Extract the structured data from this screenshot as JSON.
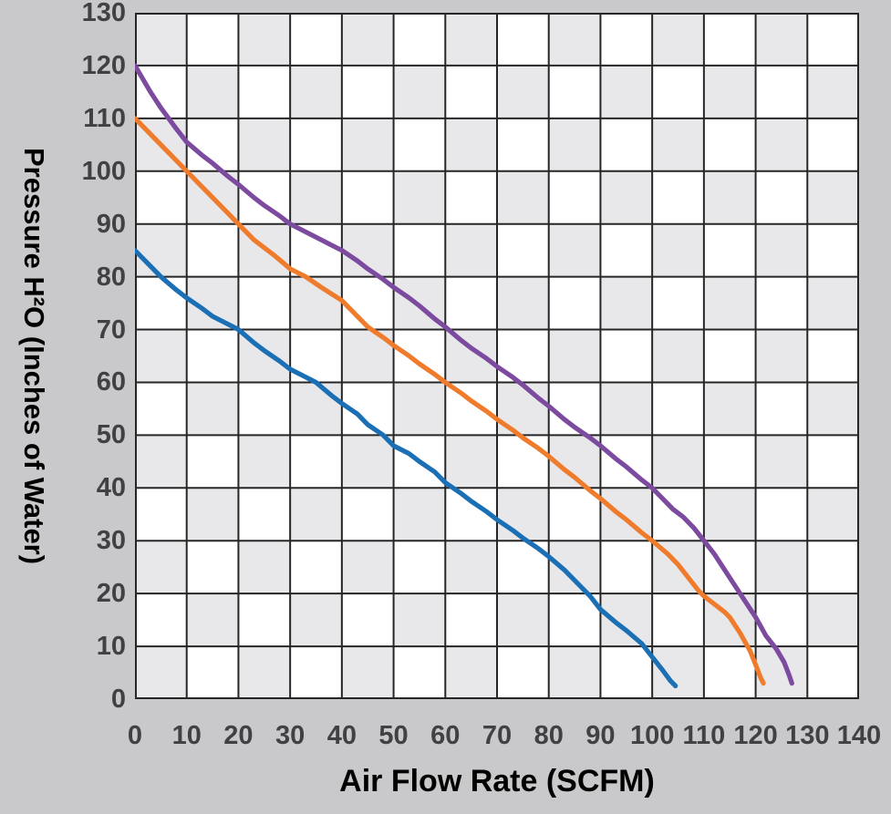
{
  "chart_data": {
    "type": "line",
    "title": "",
    "xlabel": "Air Flow Rate (SCFM)",
    "ylabel": "Pressure H²O (Inches of Water)",
    "xlim": [
      0,
      140
    ],
    "ylim": [
      0,
      130
    ],
    "x_ticks": [
      0,
      10,
      20,
      30,
      40,
      50,
      60,
      70,
      80,
      90,
      100,
      110,
      120,
      130,
      140
    ],
    "y_ticks": [
      0,
      10,
      20,
      30,
      40,
      50,
      60,
      70,
      80,
      90,
      100,
      110,
      120,
      130
    ],
    "grid": "checkerboard",
    "legend": "none",
    "series": [
      {
        "name": "blue-curve",
        "color": "#1b6fb4",
        "points": [
          [
            0,
            85
          ],
          [
            3,
            82
          ],
          [
            5,
            80
          ],
          [
            8,
            77.5
          ],
          [
            10,
            76
          ],
          [
            13,
            74
          ],
          [
            15,
            72.5
          ],
          [
            18,
            71
          ],
          [
            20,
            70
          ],
          [
            23,
            67.5
          ],
          [
            25,
            66
          ],
          [
            28,
            64
          ],
          [
            30,
            62.5
          ],
          [
            33,
            61
          ],
          [
            35,
            60
          ],
          [
            38,
            57.5
          ],
          [
            40,
            56
          ],
          [
            43,
            54
          ],
          [
            45,
            52
          ],
          [
            48,
            50
          ],
          [
            50,
            48
          ],
          [
            53,
            46.5
          ],
          [
            55,
            45
          ],
          [
            58,
            43
          ],
          [
            60,
            41
          ],
          [
            63,
            39
          ],
          [
            65,
            37.5
          ],
          [
            68,
            35.5
          ],
          [
            70,
            34
          ],
          [
            73,
            32
          ],
          [
            75,
            30.5
          ],
          [
            78,
            28.5
          ],
          [
            80,
            27
          ],
          [
            83,
            24.5
          ],
          [
            85,
            22.5
          ],
          [
            88,
            19.5
          ],
          [
            90,
            17
          ],
          [
            93,
            14.5
          ],
          [
            95,
            13
          ],
          [
            98,
            10.5
          ],
          [
            100,
            8
          ],
          [
            102,
            5.5
          ],
          [
            103.5,
            3.5
          ],
          [
            104.5,
            2.5
          ]
        ]
      },
      {
        "name": "orange-curve",
        "color": "#ef7b2c",
        "points": [
          [
            0,
            110
          ],
          [
            4,
            106
          ],
          [
            8,
            102
          ],
          [
            10,
            100
          ],
          [
            14,
            96
          ],
          [
            18,
            92
          ],
          [
            20,
            90
          ],
          [
            23,
            87
          ],
          [
            25,
            85.5
          ],
          [
            27,
            84
          ],
          [
            30,
            81.5
          ],
          [
            33,
            80
          ],
          [
            36,
            78
          ],
          [
            40,
            75.5
          ],
          [
            43,
            72.5
          ],
          [
            45,
            70.5
          ],
          [
            48,
            68.5
          ],
          [
            50,
            67
          ],
          [
            53,
            65
          ],
          [
            55,
            63.5
          ],
          [
            58,
            61.5
          ],
          [
            60,
            60
          ],
          [
            63,
            58
          ],
          [
            65,
            56.5
          ],
          [
            68,
            54.5
          ],
          [
            70,
            53
          ],
          [
            73,
            51
          ],
          [
            75,
            49.5
          ],
          [
            78,
            47.5
          ],
          [
            80,
            46
          ],
          [
            83,
            43.5
          ],
          [
            85,
            42
          ],
          [
            88,
            39.5
          ],
          [
            90,
            38
          ],
          [
            93,
            35.5
          ],
          [
            95,
            34
          ],
          [
            98,
            31.5
          ],
          [
            100,
            30
          ],
          [
            103,
            27.5
          ],
          [
            105,
            25.5
          ],
          [
            107,
            23
          ],
          [
            109,
            20.5
          ],
          [
            110,
            19.5
          ],
          [
            112,
            18
          ],
          [
            114,
            16.5
          ],
          [
            115,
            15.5
          ],
          [
            117,
            12.5
          ],
          [
            119,
            9
          ],
          [
            120,
            6.5
          ],
          [
            121,
            4
          ],
          [
            121.5,
            3
          ]
        ]
      },
      {
        "name": "purple-curve",
        "color": "#7c4a9e",
        "points": [
          [
            0,
            120
          ],
          [
            3,
            115
          ],
          [
            5,
            112
          ],
          [
            8,
            108
          ],
          [
            10,
            105.5
          ],
          [
            13,
            103
          ],
          [
            15,
            101.5
          ],
          [
            18,
            99
          ],
          [
            20,
            97.5
          ],
          [
            23,
            95
          ],
          [
            25,
            93.5
          ],
          [
            28,
            91.5
          ],
          [
            30,
            90
          ],
          [
            33,
            88.5
          ],
          [
            35,
            87.5
          ],
          [
            38,
            86
          ],
          [
            40,
            85
          ],
          [
            43,
            83
          ],
          [
            45,
            81.5
          ],
          [
            48,
            79.5
          ],
          [
            50,
            78
          ],
          [
            53,
            76
          ],
          [
            55,
            74.5
          ],
          [
            58,
            72
          ],
          [
            60,
            70.5
          ],
          [
            63,
            68
          ],
          [
            65,
            66.5
          ],
          [
            68,
            64.5
          ],
          [
            70,
            63
          ],
          [
            73,
            61
          ],
          [
            75,
            59.5
          ],
          [
            78,
            57
          ],
          [
            80,
            55.5
          ],
          [
            83,
            53
          ],
          [
            85,
            51.5
          ],
          [
            88,
            49.5
          ],
          [
            90,
            48
          ],
          [
            93,
            45.5
          ],
          [
            95,
            44
          ],
          [
            98,
            41.5
          ],
          [
            100,
            40
          ],
          [
            102,
            38
          ],
          [
            104,
            36
          ],
          [
            106,
            34.5
          ],
          [
            108,
            32.5
          ],
          [
            110,
            30
          ],
          [
            112,
            27.5
          ],
          [
            114,
            24.5
          ],
          [
            116,
            21.5
          ],
          [
            118,
            18.5
          ],
          [
            120,
            15.5
          ],
          [
            122,
            12
          ],
          [
            124,
            9.5
          ],
          [
            125.5,
            7
          ],
          [
            126.5,
            4.5
          ],
          [
            127,
            3
          ]
        ]
      }
    ]
  },
  "colors": {
    "page_bg": "#c9c9cb",
    "cell_light": "#ffffff",
    "cell_dark": "#e8e8ea",
    "grid_line": "#262626",
    "tick_label": "#414144",
    "axis_title": "#000000"
  }
}
